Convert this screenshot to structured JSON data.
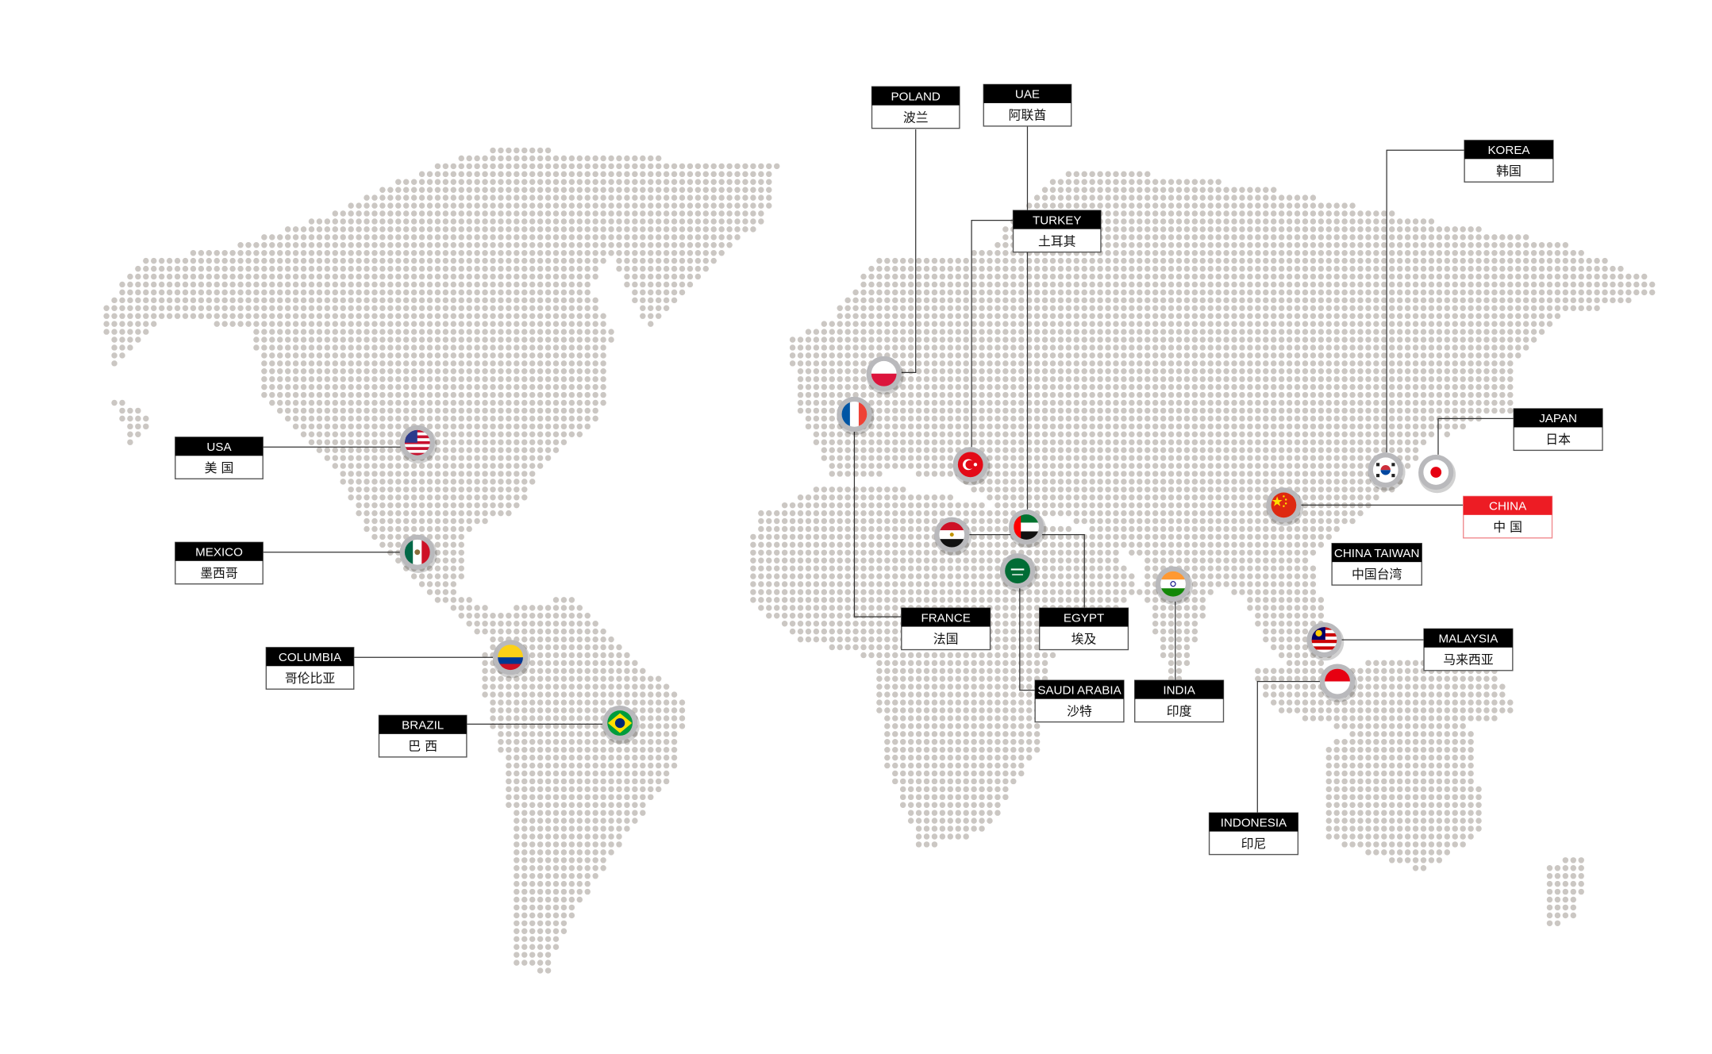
{
  "accent_color": "#ed1c24",
  "dot_color": "#cbc7c3",
  "labels": [
    {
      "id": "usa",
      "en": "USA",
      "zh": "美 国",
      "flag": "usa-flag-icon"
    },
    {
      "id": "mexico",
      "en": "MEXICO",
      "zh": "墨西哥",
      "flag": "mexico-flag-icon"
    },
    {
      "id": "columbia",
      "en": "COLUMBIA",
      "zh": "哥伦比亚",
      "flag": "colombia-flag-icon"
    },
    {
      "id": "brazil",
      "en": "BRAZIL",
      "zh": "巴 西",
      "flag": "brazil-flag-icon"
    },
    {
      "id": "poland",
      "en": "POLAND",
      "zh": "波兰",
      "flag": "poland-flag-icon"
    },
    {
      "id": "uae",
      "en": "UAE",
      "zh": "阿联酋",
      "flag": "uae-flag-icon"
    },
    {
      "id": "turkey",
      "en": "TURKEY",
      "zh": "土耳其",
      "flag": "turkey-flag-icon"
    },
    {
      "id": "korea",
      "en": "KOREA",
      "zh": "韩国",
      "flag": "korea-flag-icon"
    },
    {
      "id": "japan",
      "en": "JAPAN",
      "zh": "日本",
      "flag": "japan-flag-icon"
    },
    {
      "id": "china",
      "en": "CHINA",
      "zh": "中 国",
      "flag": "china-flag-icon",
      "highlight": true
    },
    {
      "id": "china-taiwan",
      "en": "CHINA TAIWAN",
      "zh": "中国台湾"
    },
    {
      "id": "malaysia",
      "en": "MALAYSIA",
      "zh": "马来西亚",
      "flag": "malaysia-flag-icon"
    },
    {
      "id": "egypt",
      "en": "EGYPT",
      "zh": "埃及",
      "flag": "egypt-flag-icon"
    },
    {
      "id": "france",
      "en": "FRANCE",
      "zh": "法国",
      "flag": "france-flag-icon"
    },
    {
      "id": "saudi-arabia",
      "en": "SAUDI ARABIA",
      "zh": "沙特",
      "flag": "saudi-arabia-flag-icon"
    },
    {
      "id": "india",
      "en": "INDIA",
      "zh": "印度",
      "flag": "india-flag-icon"
    },
    {
      "id": "indonesia",
      "en": "INDONESIA",
      "zh": "印尼",
      "flag": "indonesia-flag-icon"
    }
  ]
}
